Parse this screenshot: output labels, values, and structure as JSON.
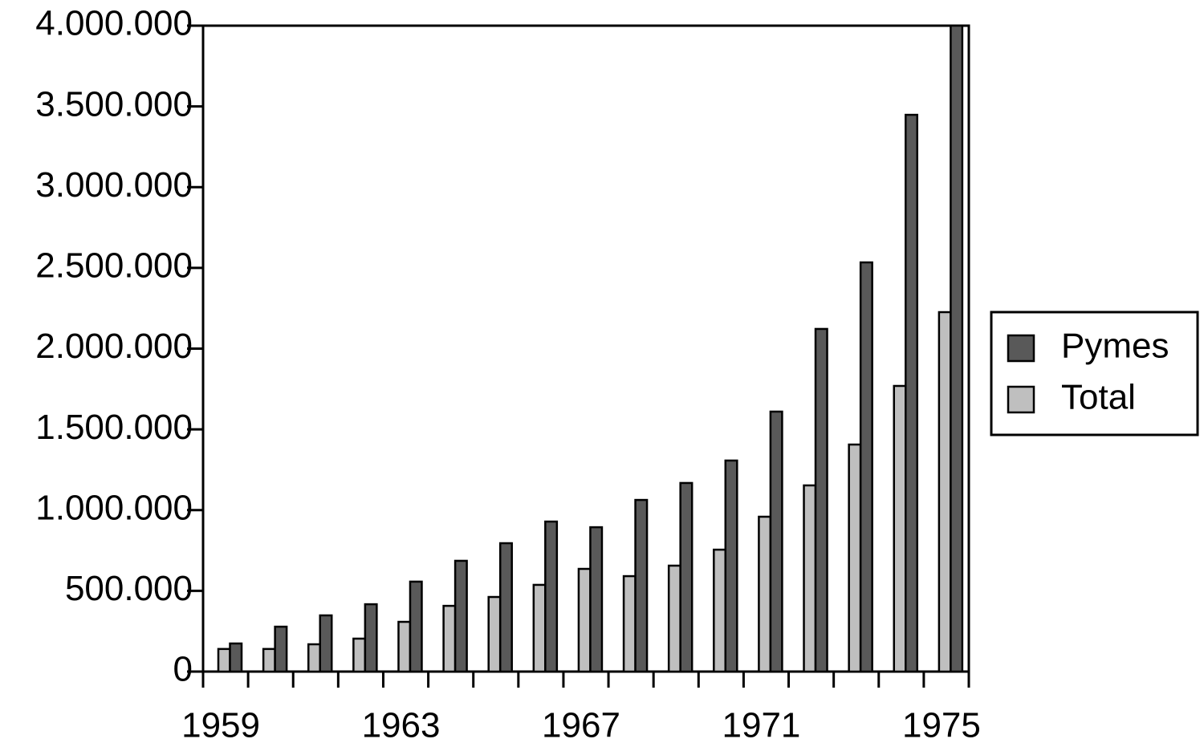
{
  "chart_data": {
    "type": "bar",
    "categories": [
      "1959",
      null,
      null,
      null,
      "1963",
      null,
      null,
      null,
      "1967",
      null,
      null,
      null,
      "1971",
      null,
      null,
      null,
      "1975"
    ],
    "series": [
      {
        "name": "Pymes",
        "color": "#595959",
        "values": [
          174000,
          278000,
          348000,
          417000,
          557000,
          686000,
          795000,
          929000,
          894000,
          1063000,
          1168000,
          1307000,
          1610000,
          2122000,
          2534000,
          3448000,
          4000000
        ]
      },
      {
        "name": "Total",
        "color": "#bfbfbf",
        "values": [
          140000,
          140000,
          169000,
          204000,
          308000,
          407000,
          462000,
          537000,
          636000,
          591000,
          656000,
          755000,
          959000,
          1153000,
          1406000,
          1769000,
          2226000
        ]
      }
    ],
    "ylim": [
      0,
      4000000
    ],
    "yticks": [
      0,
      {
        "value": 500000,
        "label": "500.000"
      },
      {
        "value": 1000000,
        "label": "1.000.000"
      },
      {
        "value": 1500000,
        "label": "1.500.000"
      },
      {
        "value": 2000000,
        "label": "2.000.000"
      },
      {
        "value": 2500000,
        "label": "2.500.000"
      },
      {
        "value": 3000000,
        "label": "3.000.000"
      },
      {
        "value": 3500000,
        "label": "3.500.000"
      },
      {
        "value": 4000000,
        "label": "4.000.000"
      }
    ],
    "legend": "right"
  }
}
